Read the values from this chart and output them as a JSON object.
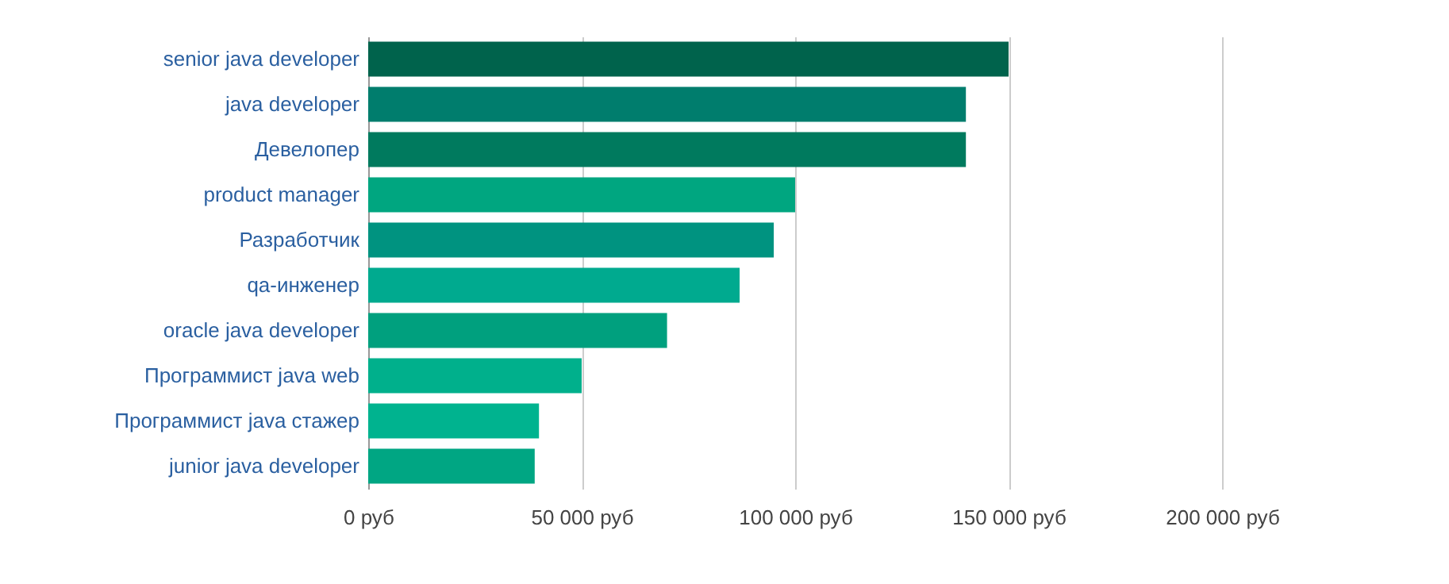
{
  "chart_data": {
    "type": "bar",
    "orientation": "horizontal",
    "categories": [
      "senior java developer",
      "java developer",
      "Девелопер",
      "product manager",
      "Разработчик",
      "qa-инженер",
      "oracle java developer",
      "Программист java web",
      "Программист java стажер",
      "junior java developer"
    ],
    "values": [
      150000,
      140000,
      140000,
      100000,
      95000,
      87000,
      70000,
      50000,
      40000,
      39000
    ],
    "colors": [
      "#00634c",
      "#007d6d",
      "#007a5e",
      "#00a680",
      "#009380",
      "#00aa8f",
      "#00a07e",
      "#00b08c",
      "#00b38f",
      "#00a683"
    ],
    "xlim": [
      0,
      200000
    ],
    "xticks": [
      {
        "value": 0,
        "label": "0 руб"
      },
      {
        "value": 50000,
        "label": "50 000 руб"
      },
      {
        "value": 100000,
        "label": "100 000 руб"
      },
      {
        "value": 150000,
        "label": "150 000 руб"
      },
      {
        "value": 200000,
        "label": "200 000 руб"
      }
    ],
    "grid": "x"
  }
}
